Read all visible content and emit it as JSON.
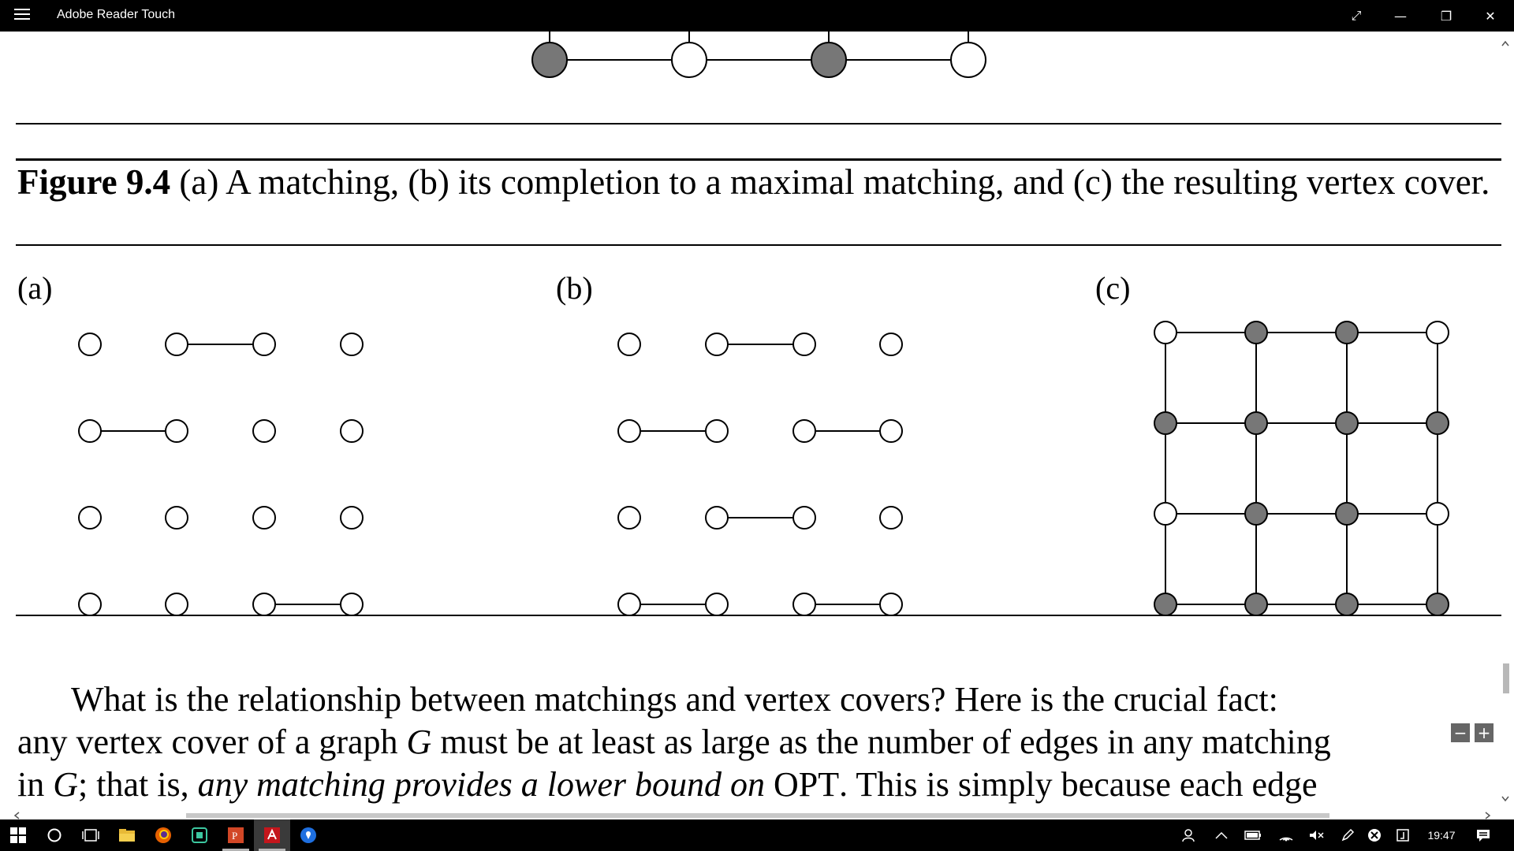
{
  "window": {
    "title": "Adobe Reader Touch",
    "controls": {
      "fullscreen": "⤢",
      "minimize": "—",
      "restore": "❐",
      "close": "✕"
    }
  },
  "document": {
    "caption": {
      "label": "Figure 9.4",
      "text": "(a) A matching, (b) its completion to a maximal matching, and (c) the resulting vertex cover."
    },
    "panels": [
      {
        "label": "(a)"
      },
      {
        "label": "(b)"
      },
      {
        "label": "(c)"
      }
    ],
    "paragraph": {
      "line1": "What is the relationship between matchings and vertex covers? Here is the crucial fact:",
      "line2_a": "any vertex cover of a graph ",
      "line2_G": "G",
      "line2_b": " must be at least as large as the number of edges in any matching",
      "line3_a": "in ",
      "line3_G": "G",
      "line3_b": "; that is, ",
      "line3_italic": "any matching provides a lower bound on",
      "line3_opt": " OPT",
      "line3_c": ". This is simply because each edge"
    }
  },
  "zoom": {
    "minus": "−",
    "plus": "+"
  },
  "taskbar": {
    "apps": [
      "windows-start",
      "search",
      "task-view",
      "file-explorer",
      "firefox",
      "app-green",
      "powerpoint",
      "adobe-reader",
      "maps"
    ],
    "clock": "19:47"
  },
  "colors": {
    "filled_vertex": "#777777",
    "window_chrome": "#000000"
  }
}
